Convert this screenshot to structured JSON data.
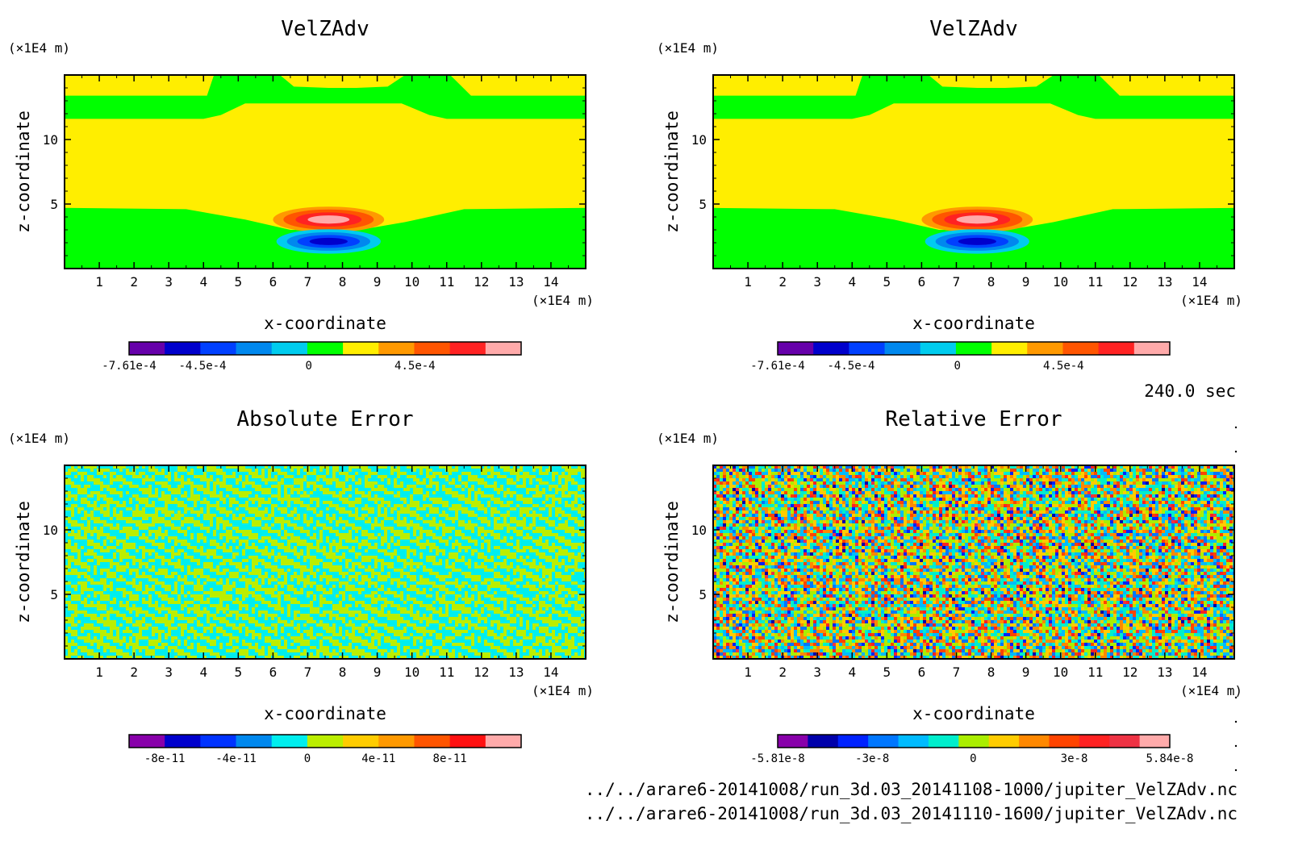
{
  "time_label": "240.0 sec",
  "footer_lines": [
    "../../arare6-20141008/run_3d.03_20141108-1000/jupiter_VelZAdv.nc",
    "../../arare6-20141008/run_3d.03_20141110-1600/jupiter_VelZAdv.nc"
  ],
  "chart_data": [
    {
      "type": "heatmap",
      "title": "VelZAdv",
      "xlabel": "x-coordinate",
      "ylabel": "z-coordinate",
      "x_unit": "(×1E4 m)",
      "y_unit": "(×1E4 m)",
      "xlim": [
        0,
        15
      ],
      "ylim": [
        0,
        15
      ],
      "x_ticks": [
        1,
        2,
        3,
        4,
        5,
        6,
        7,
        8,
        9,
        10,
        11,
        12,
        13,
        14
      ],
      "y_ticks": [
        5,
        10
      ],
      "field": "vertical velocity advection: positive lobe centred near x=7.5, z=3.8; negative lobe near x=7.5, z=2.1",
      "colorbar": {
        "colors": [
          "#6600aa",
          "#0000cc",
          "#0040ff",
          "#0088ee",
          "#00ccee",
          "#00ff00",
          "#ffee00",
          "#ff9900",
          "#ff5500",
          "#ff2222",
          "#ffaaaa"
        ],
        "tick_labels": [
          "-7.61e-4",
          "-4.5e-4",
          "0",
          "4.5e-4"
        ],
        "tick_values": [
          -0.000761,
          -0.00045,
          0,
          0.00045
        ],
        "range": [
          -0.000761,
          0.0009
        ]
      }
    },
    {
      "type": "heatmap",
      "title": "VelZAdv",
      "xlabel": "x-coordinate",
      "ylabel": "z-coordinate",
      "x_unit": "(×1E4 m)",
      "y_unit": "(×1E4 m)",
      "xlim": [
        0,
        15
      ],
      "ylim": [
        0,
        15
      ],
      "x_ticks": [
        1,
        2,
        3,
        4,
        5,
        6,
        7,
        8,
        9,
        10,
        11,
        12,
        13,
        14
      ],
      "y_ticks": [
        5,
        10
      ],
      "field": "vertical velocity advection: positive lobe centred near x=7.5, z=3.8; negative lobe near x=7.5, z=2.1",
      "colorbar": {
        "colors": [
          "#6600aa",
          "#0000cc",
          "#0040ff",
          "#0088ee",
          "#00ccee",
          "#00ff00",
          "#ffee00",
          "#ff9900",
          "#ff5500",
          "#ff2222",
          "#ffaaaa"
        ],
        "tick_labels": [
          "-7.61e-4",
          "-4.5e-4",
          "0",
          "4.5e-4"
        ],
        "tick_values": [
          -0.000761,
          -0.00045,
          0,
          0.00045
        ],
        "range": [
          -0.000761,
          0.0009
        ]
      }
    },
    {
      "type": "heatmap",
      "title": "Absolute Error",
      "xlabel": "x-coordinate",
      "ylabel": "z-coordinate",
      "x_unit": "(×1E4 m)",
      "y_unit": "(×1E4 m)",
      "xlim": [
        0,
        15
      ],
      "ylim": [
        0,
        15
      ],
      "x_ticks": [
        1,
        2,
        3,
        4,
        5,
        6,
        7,
        8,
        9,
        10,
        11,
        12,
        13,
        14
      ],
      "y_ticks": [
        5,
        10
      ],
      "field": "noise alternating between the two classes just below and above 0 (cyan / yellow-green)",
      "colorbar": {
        "colors": [
          "#8800aa",
          "#0000cc",
          "#0033ff",
          "#0088ee",
          "#00eeee",
          "#bbee00",
          "#ffcc00",
          "#ff9900",
          "#ff5500",
          "#ff1111",
          "#ffaaaa"
        ],
        "tick_labels": [
          "-8e-11",
          "-4e-11",
          "0",
          "4e-11",
          "8e-11"
        ],
        "tick_values": [
          -8e-11,
          -4e-11,
          0,
          4e-11,
          8e-11
        ],
        "range": [
          -1e-10,
          1.2e-10
        ]
      }
    },
    {
      "type": "heatmap",
      "title": "Relative Error",
      "xlabel": "x-coordinate",
      "ylabel": "z-coordinate",
      "x_unit": "(×1E4 m)",
      "y_unit": "(×1E4 m)",
      "xlim": [
        0,
        15
      ],
      "ylim": [
        0,
        15
      ],
      "x_ticks": [
        1,
        2,
        3,
        4,
        5,
        6,
        7,
        8,
        9,
        10,
        11,
        12,
        13,
        14
      ],
      "y_ticks": [
        5,
        10
      ],
      "field": "speckled noise spanning the full colour range",
      "colorbar": {
        "colors": [
          "#8800aa",
          "#0000aa",
          "#0022ff",
          "#0077ff",
          "#00bbff",
          "#00eecc",
          "#aaee00",
          "#ffcc00",
          "#ff8800",
          "#ff4400",
          "#ff2222",
          "#ee3344",
          "#ffaaaa"
        ],
        "tick_labels": [
          "-5.81e-8",
          "-3e-8",
          "0",
          "3e-8",
          "5.84e-8"
        ],
        "tick_values": [
          -5.81e-08,
          -3e-08,
          0,
          3e-08,
          5.84e-08
        ],
        "range": [
          -5.81e-08,
          5.84e-08
        ]
      }
    }
  ]
}
